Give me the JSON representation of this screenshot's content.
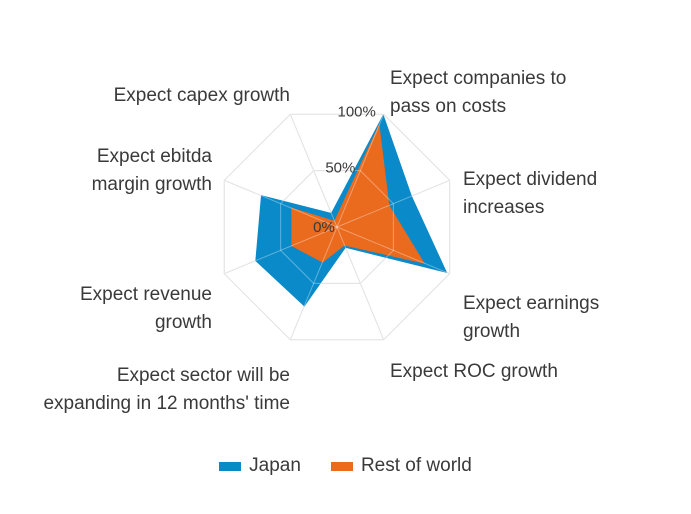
{
  "chart_data": {
    "type": "radar",
    "title": "",
    "axes": [
      [
        "Expect companies to",
        "pass on costs"
      ],
      [
        "Expect dividend",
        "increases"
      ],
      [
        "Expect earnings",
        "growth"
      ],
      [
        "Expect ROC growth"
      ],
      [
        "Expect sector will be",
        "expanding in 12 months' time"
      ],
      [
        "Expect revenue",
        "growth"
      ],
      [
        "Expect ebitda",
        "margin growth"
      ],
      [
        "Expect capex growth"
      ]
    ],
    "ticks": [
      {
        "value": 0,
        "label": "0%"
      },
      {
        "value": 50,
        "label": "50%"
      },
      {
        "value": 100,
        "label": "100%"
      }
    ],
    "range": [
      0,
      100
    ],
    "series": [
      {
        "name": "Japan",
        "color": "#0a8ac8",
        "values": [
          99,
          66,
          97,
          18,
          70,
          72,
          67,
          12
        ]
      },
      {
        "name": "Rest of world",
        "color": "#ea6a1e",
        "values": [
          90,
          46,
          77,
          16,
          31,
          40,
          40,
          5
        ]
      }
    ],
    "legend_position": "bottom-center",
    "grid": true
  }
}
